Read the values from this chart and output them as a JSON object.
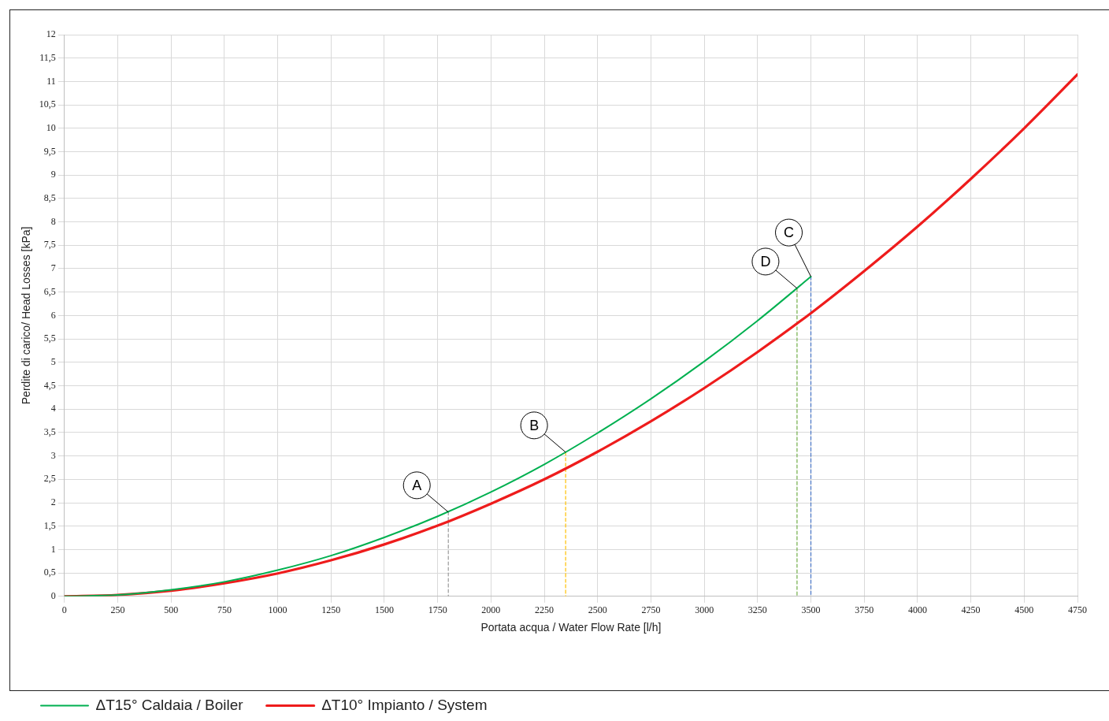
{
  "chart_data": {
    "type": "line",
    "xlabel": "Portata acqua / Water Flow Rate [l/h]",
    "ylabel": "Perdite di carico/ Head Losses [kPa]",
    "xlim": [
      0,
      4750
    ],
    "xticks": [
      0,
      250,
      500,
      750,
      1000,
      1250,
      1500,
      1750,
      2000,
      2250,
      2500,
      2750,
      3000,
      3250,
      3500,
      3750,
      4000,
      4250,
      4500,
      4750
    ],
    "ylim": [
      0,
      12
    ],
    "yticks": [
      0,
      {
        "value": 0.5,
        "label": "0,5"
      },
      1,
      {
        "value": 1.5,
        "label": "1,5"
      },
      2,
      {
        "value": 2.5,
        "label": "2,5"
      },
      3,
      {
        "value": 3.5,
        "label": "3,5"
      },
      4,
      {
        "value": 4.5,
        "label": "4,5"
      },
      5,
      {
        "value": 5.5,
        "label": "5,5"
      },
      6,
      {
        "value": 6.5,
        "label": "6,5"
      },
      7,
      {
        "value": 7.5,
        "label": "7,5"
      },
      8,
      {
        "value": 8.5,
        "label": "8,5"
      },
      9,
      {
        "value": 9.5,
        "label": "9,5"
      },
      10,
      {
        "value": 10.5,
        "label": "10,5"
      },
      11,
      {
        "value": 11.5,
        "label": "11,5"
      },
      12
    ],
    "grid": true,
    "legend": "bottom left",
    "marker": "none",
    "series": [
      {
        "name": "ΔT15° Caldaia / Boiler",
        "color": "#00b050",
        "line_style": "solid",
        "x": [
          0,
          250,
          500,
          750,
          1000,
          1250,
          1500,
          1750,
          2000,
          2250,
          2500,
          2750,
          3000,
          3250,
          3500
        ],
        "values": [
          0,
          0.03,
          0.14,
          0.31,
          0.56,
          0.87,
          1.26,
          1.71,
          2.23,
          2.82,
          3.49,
          4.22,
          5.02,
          5.89,
          6.83
        ]
      },
      {
        "name": "ΔT10° Impianto / System",
        "color": "#ee1c1c",
        "line_style": "solid",
        "x": [
          0,
          250,
          500,
          750,
          1000,
          1250,
          1500,
          1750,
          2000,
          2250,
          2500,
          2750,
          3000,
          3250,
          3500,
          3750,
          4000,
          4250,
          4500,
          4750
        ],
        "values": [
          0,
          0.03,
          0.12,
          0.28,
          0.49,
          0.77,
          1.11,
          1.51,
          1.98,
          2.5,
          3.09,
          3.74,
          4.45,
          5.22,
          6.05,
          6.95,
          7.9,
          8.92,
          10,
          11.15
        ]
      },
      {
        "color": "#999999",
        "line_style": "dashed",
        "x": [
          1800,
          1800
        ],
        "values": [
          1.8,
          0
        ]
      },
      {
        "color": "#ffc000",
        "line_style": "dashed",
        "x": [
          2350,
          2350
        ],
        "values": [
          3.08,
          0
        ]
      },
      {
        "color": "#70ad47",
        "line_style": "dashed",
        "x": [
          3435,
          3435
        ],
        "values": [
          6.58,
          0
        ]
      },
      {
        "color": "#4472c4",
        "line_style": "dashed",
        "x": [
          3500,
          3500
        ],
        "values": [
          6.83,
          0
        ]
      }
    ],
    "annotations": [
      {
        "text": "A",
        "x": 1800,
        "y": 1.8
      },
      {
        "text": "B",
        "x": 2350,
        "y": 3.08
      },
      {
        "text": "D",
        "x": 3435,
        "y": 6.58
      },
      {
        "text": "C",
        "x": 3500,
        "y": 6.83
      }
    ]
  }
}
